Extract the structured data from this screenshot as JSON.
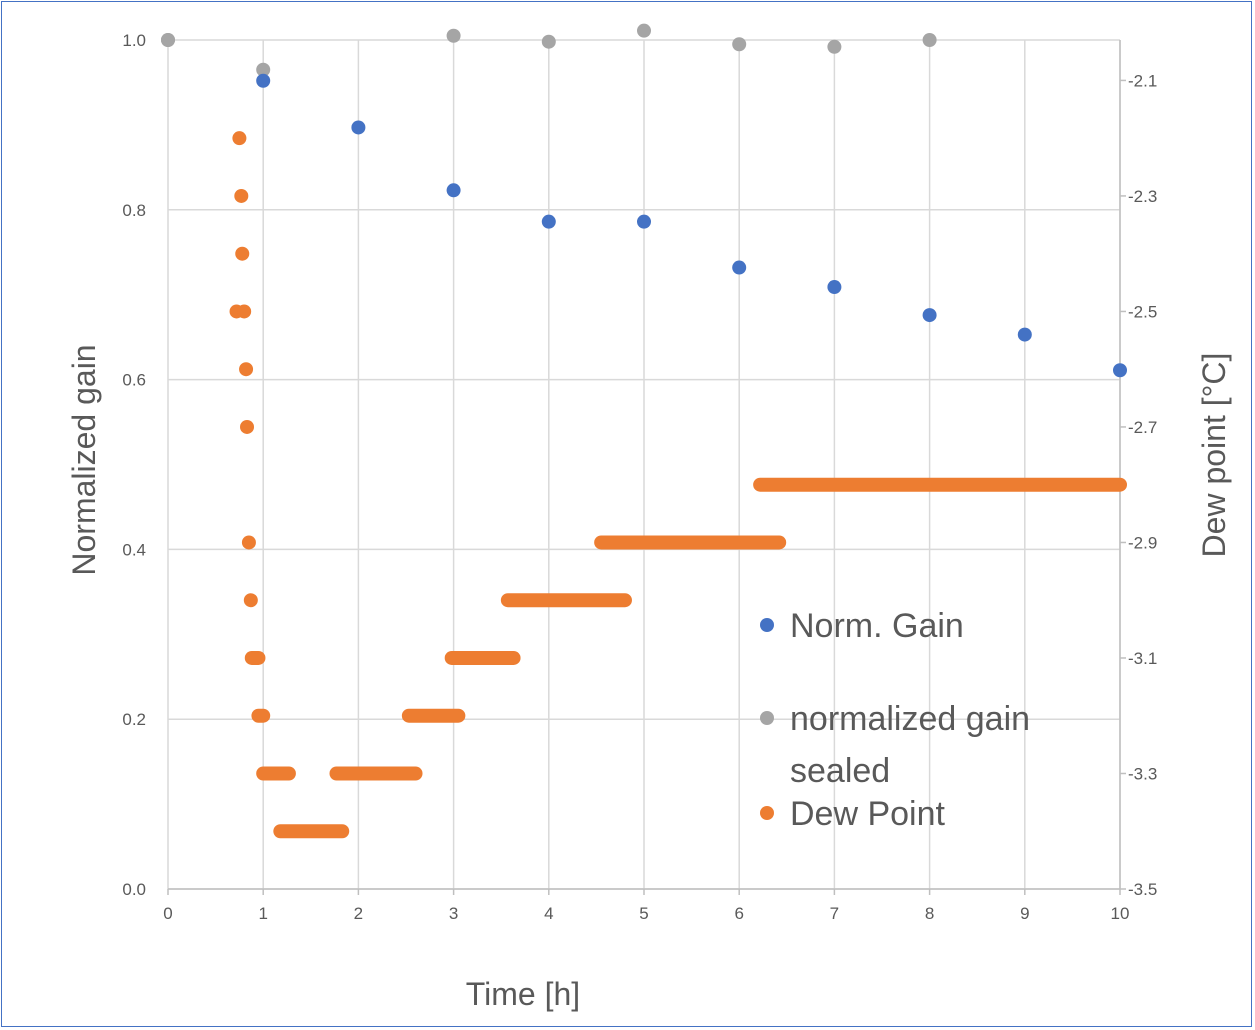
{
  "chart_data": {
    "type": "scatter",
    "xlabel": "Time [h]",
    "ylabel": "Normalized gain",
    "y2label": "Dew point [°C]",
    "xlim": [
      0,
      10
    ],
    "ylim": [
      0,
      1
    ],
    "y2lim": [
      -3.5,
      -2.03
    ],
    "x_ticks": [
      "0",
      "1",
      "2",
      "3",
      "4",
      "5",
      "6",
      "7",
      "8",
      "9",
      "10"
    ],
    "y_ticks": [
      "0.0",
      "0.2",
      "0.4",
      "0.6",
      "0.8",
      "1.0"
    ],
    "y2_ticks": [
      "-3.5",
      "-3.3",
      "-3.1",
      "-2.9",
      "-2.7",
      "-2.5",
      "-2.3",
      "-2.1"
    ],
    "grid": true,
    "legend_position": "right",
    "colors": {
      "norm_gain": "#4472C4",
      "sealed": "#A5A5A5",
      "dew_point": "#ED7D31",
      "grid": "#D9D9D9",
      "text": "#595959",
      "frame": "#4472C4"
    },
    "series": [
      {
        "name": "Norm. Gain",
        "axis": "left",
        "x": [
          0,
          1,
          2,
          3,
          4,
          5,
          6,
          7,
          8,
          9,
          10
        ],
        "y": [
          1.0,
          0.952,
          0.897,
          0.823,
          0.786,
          0.786,
          0.732,
          0.709,
          0.676,
          0.653,
          0.611
        ]
      },
      {
        "name": "normalized gain sealed",
        "axis": "left",
        "x": [
          0,
          1,
          3,
          4,
          5,
          6,
          7,
          8
        ],
        "y": [
          1.0,
          0.965,
          1.005,
          0.998,
          1.011,
          0.995,
          0.992,
          1.0
        ]
      },
      {
        "name": "Dew Point",
        "axis": "right",
        "points": [
          [
            0.75,
            -2.2
          ],
          [
            0.77,
            -2.3
          ],
          [
            0.78,
            -2.4
          ],
          [
            0.72,
            -2.5
          ],
          [
            0.8,
            -2.5
          ],
          [
            0.82,
            -2.6
          ],
          [
            0.83,
            -2.7
          ],
          [
            0.85,
            -2.9
          ],
          [
            0.87,
            -3.0
          ]
        ],
        "segments": [
          {
            "x0": 0.88,
            "x1": 0.95,
            "y": -3.1
          },
          {
            "x0": 0.95,
            "x1": 1.0,
            "y": -3.2
          },
          {
            "x0": 1.0,
            "x1": 1.27,
            "y": -3.3
          },
          {
            "x0": 1.18,
            "x1": 1.83,
            "y": -3.4
          },
          {
            "x0": 1.77,
            "x1": 2.6,
            "y": -3.3
          },
          {
            "x0": 2.53,
            "x1": 3.05,
            "y": -3.2
          },
          {
            "x0": 2.98,
            "x1": 3.63,
            "y": -3.1
          },
          {
            "x0": 3.57,
            "x1": 4.8,
            "y": -3.0
          },
          {
            "x0": 4.55,
            "x1": 6.42,
            "y": -2.9
          },
          {
            "x0": 6.22,
            "x1": 10.0,
            "y": -2.8
          }
        ]
      }
    ],
    "legend": [
      "Norm. Gain",
      "normalized gain",
      "sealed",
      "Dew Point"
    ]
  }
}
